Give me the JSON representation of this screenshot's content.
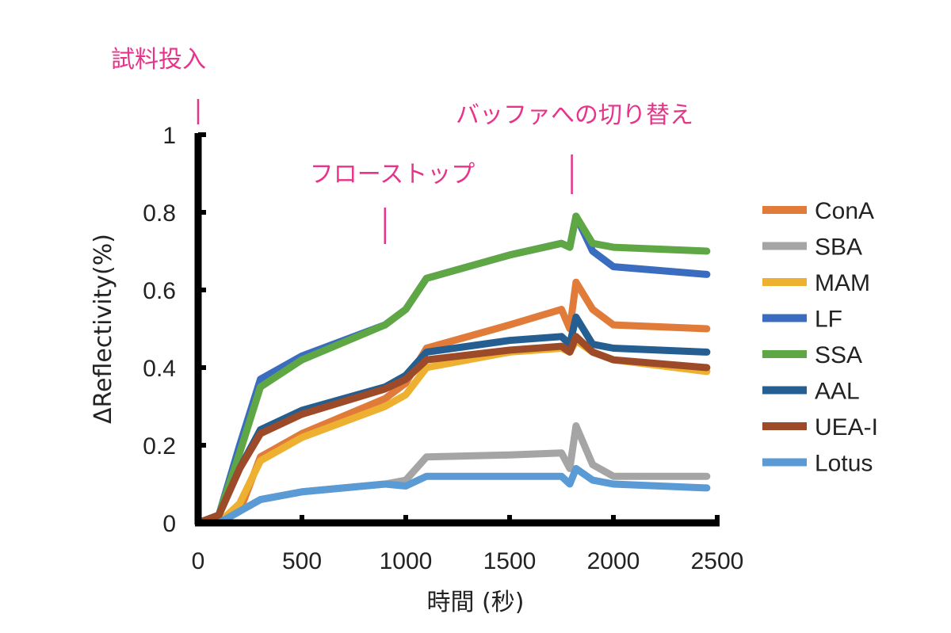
{
  "chart_data": {
    "type": "line",
    "xlabel": "時間 (秒)",
    "ylabel": "ΔReflectivity(%)",
    "xlim": [
      0,
      2500
    ],
    "ylim": [
      0,
      1
    ],
    "xticks": [
      "0",
      "500",
      "1000",
      "1500",
      "2000",
      "2500"
    ],
    "yticks": [
      "0",
      "0.2",
      "0.4",
      "0.6",
      "0.8",
      "1"
    ],
    "legend_position": "right",
    "annotations": [
      {
        "text": "試料投入",
        "x": 0
      },
      {
        "text": "フローストップ",
        "x": 900
      },
      {
        "text": "バッファへの切り替え",
        "x": 1800
      }
    ],
    "annotation_color": "#e8338a",
    "x": [
      0,
      100,
      200,
      300,
      500,
      900,
      1000,
      1100,
      1500,
      1750,
      1790,
      1820,
      1900,
      2000,
      2450
    ],
    "series": [
      {
        "name": "ConA",
        "color": "#e07b39",
        "values": [
          0,
          0,
          0.03,
          0.17,
          0.23,
          0.32,
          0.36,
          0.45,
          0.51,
          0.55,
          0.5,
          0.62,
          0.55,
          0.51,
          0.5
        ]
      },
      {
        "name": "SBA",
        "color": "#a5a5a5",
        "values": [
          0,
          0,
          0.03,
          0.06,
          0.08,
          0.1,
          0.11,
          0.17,
          0.175,
          0.18,
          0.14,
          0.25,
          0.15,
          0.12,
          0.12
        ]
      },
      {
        "name": "MAM",
        "color": "#edb030",
        "values": [
          0,
          0,
          0.05,
          0.16,
          0.22,
          0.3,
          0.33,
          0.4,
          0.44,
          0.45,
          0.44,
          0.47,
          0.44,
          0.42,
          0.39
        ]
      },
      {
        "name": "LF",
        "color": "#3a6dbf",
        "values": [
          0,
          0.02,
          0.2,
          0.37,
          0.43,
          0.51,
          0.55,
          0.63,
          0.69,
          0.72,
          0.71,
          0.79,
          0.7,
          0.66,
          0.64
        ]
      },
      {
        "name": "SSA",
        "color": "#5fa744",
        "values": [
          0,
          0.02,
          0.18,
          0.35,
          0.42,
          0.51,
          0.55,
          0.63,
          0.69,
          0.72,
          0.71,
          0.79,
          0.72,
          0.71,
          0.7
        ]
      },
      {
        "name": "AAL",
        "color": "#255e91",
        "values": [
          0,
          0.02,
          0.14,
          0.24,
          0.29,
          0.35,
          0.38,
          0.44,
          0.47,
          0.48,
          0.46,
          0.53,
          0.46,
          0.45,
          0.44
        ]
      },
      {
        "name": "UEA-I",
        "color": "#9c4a28",
        "values": [
          0,
          0.02,
          0.14,
          0.23,
          0.28,
          0.345,
          0.37,
          0.42,
          0.445,
          0.455,
          0.44,
          0.48,
          0.44,
          0.42,
          0.4
        ]
      },
      {
        "name": "Lotus",
        "color": "#5b9bd5",
        "values": [
          0,
          0,
          0.03,
          0.06,
          0.08,
          0.1,
          0.095,
          0.12,
          0.12,
          0.12,
          0.1,
          0.14,
          0.11,
          0.1,
          0.09
        ]
      }
    ]
  }
}
